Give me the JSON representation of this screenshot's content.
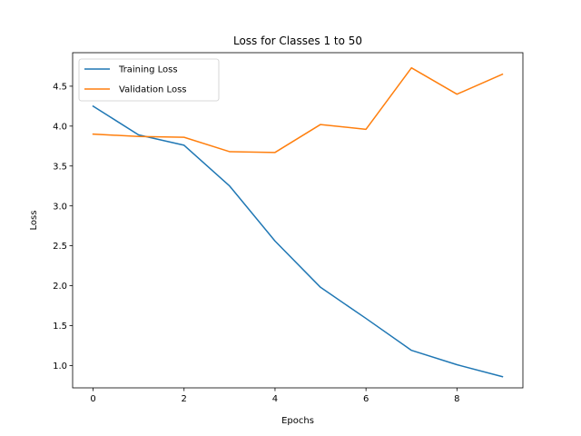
{
  "chart_data": {
    "type": "line",
    "title": "Loss for Classes 1 to 50",
    "xlabel": "Epochs",
    "ylabel": "Loss",
    "x": [
      0,
      1,
      2,
      3,
      4,
      5,
      6,
      7,
      8,
      9
    ],
    "xlim": [
      -0.45,
      9.45
    ],
    "ylim": [
      0.72,
      4.92
    ],
    "xticks": [
      0,
      2,
      4,
      6,
      8
    ],
    "xtick_labels": [
      "0",
      "2",
      "4",
      "6",
      "8"
    ],
    "yticks": [
      1.0,
      1.5,
      2.0,
      2.5,
      3.0,
      3.5,
      4.0,
      4.5
    ],
    "ytick_labels": [
      "1.0",
      "1.5",
      "2.0",
      "2.5",
      "3.0",
      "3.5",
      "4.0",
      "4.5"
    ],
    "grid": false,
    "legend_position": "top-left",
    "series": [
      {
        "name": "Training Loss",
        "color": "#1f77b4",
        "values": [
          4.25,
          3.89,
          3.76,
          3.25,
          2.56,
          1.98,
          1.59,
          1.19,
          1.01,
          0.86
        ]
      },
      {
        "name": "Validation Loss",
        "color": "#ff7f0e",
        "values": [
          3.9,
          3.87,
          3.86,
          3.68,
          3.67,
          4.02,
          3.96,
          4.73,
          4.4,
          4.65
        ]
      }
    ]
  }
}
